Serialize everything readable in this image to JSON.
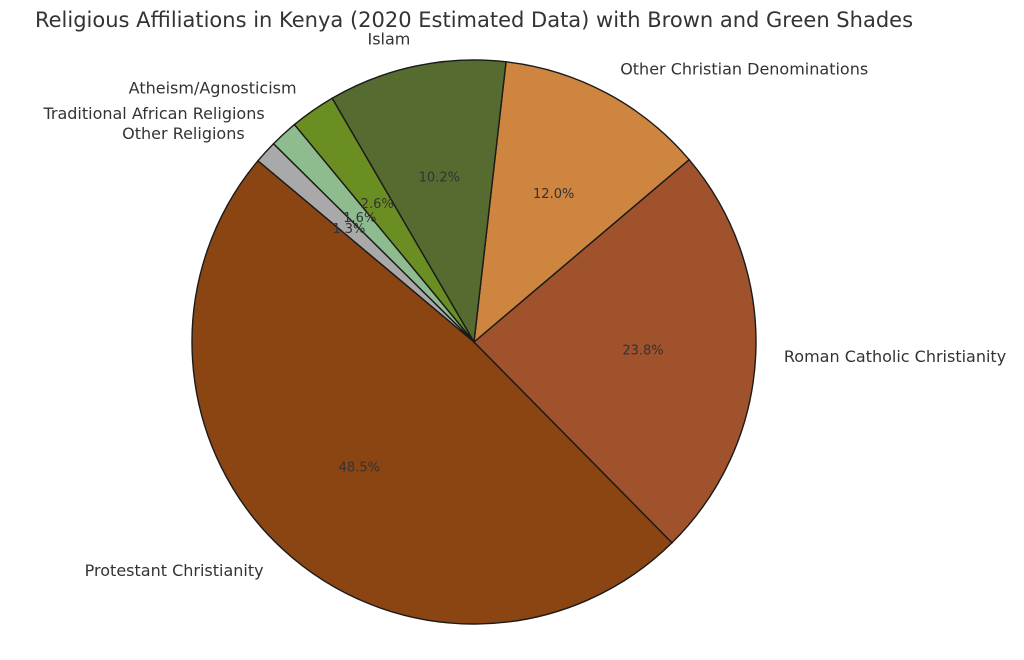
{
  "chart_data": {
    "type": "pie",
    "title": "Religious Affiliations in Kenya (2020 Estimated Data) with Brown and Green Shades",
    "start_angle_deg": 140,
    "direction": "counterclockwise",
    "slices": [
      {
        "label": "Protestant Christianity",
        "value": 48.5,
        "pct_label": "48.5%",
        "color": "#8b4513"
      },
      {
        "label": "Roman Catholic Christianity",
        "value": 23.8,
        "pct_label": "23.8%",
        "color": "#a0522d"
      },
      {
        "label": "Other Christian Denominations",
        "value": 12.0,
        "pct_label": "12.0%",
        "color": "#cd853f"
      },
      {
        "label": "Islam",
        "value": 10.2,
        "pct_label": "10.2%",
        "color": "#556b2f"
      },
      {
        "label": "Atheism/Agnosticism",
        "value": 2.6,
        "pct_label": "2.6%",
        "color": "#6b8e23"
      },
      {
        "label": "Traditional African Religions",
        "value": 1.6,
        "pct_label": "1.6%",
        "color": "#8fbc8f"
      },
      {
        "label": "Other Religions",
        "value": 1.3,
        "pct_label": "1.3%",
        "color": "#a9a9a9"
      }
    ]
  }
}
